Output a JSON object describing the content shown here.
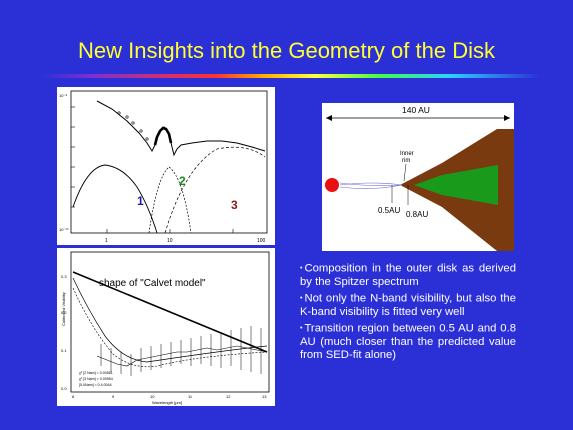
{
  "slide": {
    "title": "New Insights into the Geometry of the Disk",
    "background_color": "#2b2fd6",
    "title_color": "#ffff33"
  },
  "sed_plot": {
    "component_labels": [
      "1",
      "2",
      "3"
    ],
    "component_colors": [
      "#1a1ab4",
      "#1a8a1a",
      "#8a1a1a"
    ],
    "x_tick_labels": [
      "1",
      "10",
      "100"
    ],
    "y_tick_labels": [
      "10⁻⁸",
      "10⁻¹⁰"
    ]
  },
  "visibility_plot": {
    "annotation": "shape of \"Calvet model\"",
    "x_axis_label": "Wavelength [μm]",
    "x_tick_labels": [
      "8",
      "9",
      "10",
      "11",
      "12",
      "13"
    ],
    "y_axis_label": "Calibrated Visibility",
    "y_tick_labels": [
      "0.3",
      "0.2",
      "0.1",
      "0.0"
    ],
    "legend": [
      "χ² [2 Nam] = 0.00561",
      "χ² [3 Nam] = 0.00954",
      "[5.0Nam] = 0.4.0044"
    ]
  },
  "geometry_diagram": {
    "scale_label": "140 AU",
    "inner_rim_label_line1": "Inner",
    "inner_rim_label_line2": "rim",
    "label_05au": "0.5AU",
    "label_08au": "0.8AU",
    "star_color": "#e81010",
    "disk_outer_color": "#7a3a10",
    "disk_inner_color": "#1a9a1a"
  },
  "bullets": [
    "Composition in the outer disk as derived by the Spitzer spectrum",
    "Not only the N-band visibility, but also the K-band visibility is fitted very well",
    "Transition region between 0.5 AU and 0.8 AU (much closer than the predicted value from SED-fit alone)"
  ]
}
